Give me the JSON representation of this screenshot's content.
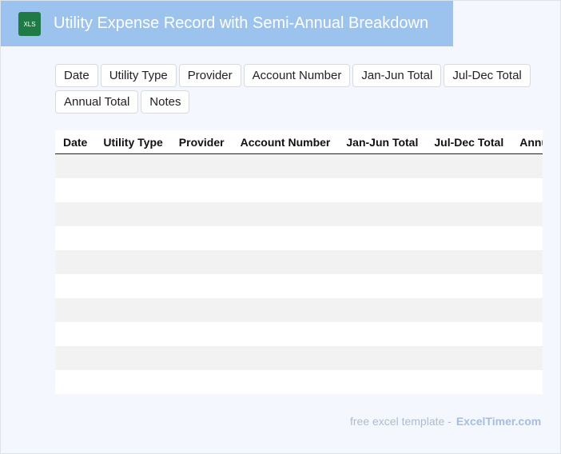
{
  "header": {
    "icon": "XLS",
    "title": "Utility Expense Record with Semi-Annual Breakdown"
  },
  "chips": [
    "Date",
    "Utility Type",
    "Provider",
    "Account Number",
    "Jan-Jun Total",
    "Jul-Dec Total",
    "Annual Total",
    "Notes"
  ],
  "table": {
    "columns": [
      "Date",
      "Utility Type",
      "Provider",
      "Account Number",
      "Jan-Jun Total",
      "Jul-Dec Total",
      "Annual Total"
    ]
  },
  "footer": {
    "text": "free excel template -",
    "link": "ExcelTimer.com"
  }
}
